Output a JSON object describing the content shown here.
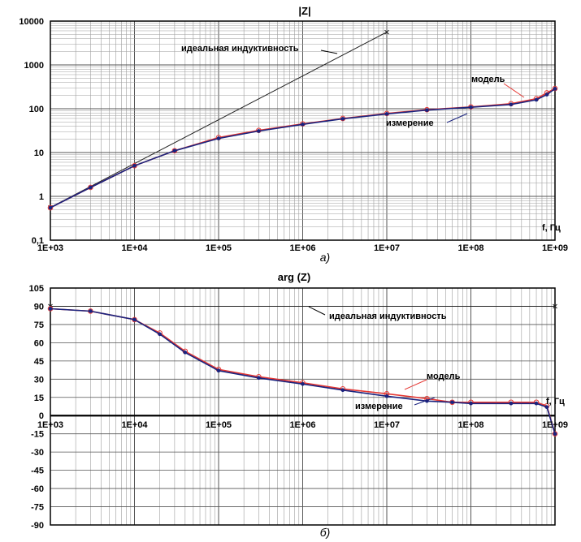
{
  "colors": {
    "measurement": "#1a237e",
    "model": "#e53935",
    "ideal": "#222222",
    "grid": "#9e9e9e"
  },
  "chart_data": [
    {
      "type": "line",
      "title": "|Z|",
      "xlabel": "f, Гц",
      "caption": "а)",
      "x_scale": "log",
      "y_scale": "log",
      "xlim": [
        1000,
        1000000000
      ],
      "ylim": [
        0.1,
        10000
      ],
      "grid": true,
      "x_ticks": [
        {
          "v": 1000,
          "label": "1E+03"
        },
        {
          "v": 10000,
          "label": "1E+04"
        },
        {
          "v": 100000,
          "label": "1E+05"
        },
        {
          "v": 1000000,
          "label": "1E+06"
        },
        {
          "v": 10000000,
          "label": "1E+07"
        },
        {
          "v": 100000000,
          "label": "1E+08"
        },
        {
          "v": 1000000000,
          "label": "1E+09"
        }
      ],
      "y_ticks": [
        {
          "v": 0.1,
          "label": "0,1"
        },
        {
          "v": 1,
          "label": "1"
        },
        {
          "v": 10,
          "label": "10"
        },
        {
          "v": 100,
          "label": "100"
        },
        {
          "v": 1000,
          "label": "1000"
        },
        {
          "v": 10000,
          "label": "10000"
        }
      ],
      "series": [
        {
          "key": "ideal",
          "color": "#222222",
          "label": "идеальная индуктивность",
          "points": [
            [
              1000,
              0.56
            ],
            [
              10000000,
              5600
            ]
          ]
        },
        {
          "key": "model",
          "color": "#e53935",
          "label": "модель",
          "points": [
            [
              1000,
              0.55
            ],
            [
              3000,
              1.6
            ],
            [
              10000,
              5
            ],
            [
              30000,
              11
            ],
            [
              100000,
              22
            ],
            [
              300000,
              32
            ],
            [
              1000000,
              45
            ],
            [
              3000000,
              60
            ],
            [
              10000000,
              78
            ],
            [
              30000000,
              95
            ],
            [
              100000000,
              110
            ],
            [
              300000000,
              130
            ],
            [
              600000000,
              170
            ],
            [
              800000000,
              230
            ],
            [
              1000000000,
              290
            ]
          ]
        },
        {
          "key": "measurement",
          "color": "#1a237e",
          "label": "измерение",
          "points": [
            [
              1000,
              0.55
            ],
            [
              3000,
              1.6
            ],
            [
              10000,
              5
            ],
            [
              30000,
              11
            ],
            [
              100000,
              21
            ],
            [
              300000,
              31
            ],
            [
              1000000,
              44
            ],
            [
              3000000,
              59
            ],
            [
              10000000,
              76
            ],
            [
              30000000,
              93
            ],
            [
              100000000,
              108
            ],
            [
              300000000,
              125
            ],
            [
              600000000,
              160
            ],
            [
              800000000,
              210
            ],
            [
              1000000000,
              285
            ]
          ]
        }
      ]
    },
    {
      "type": "line",
      "title": "arg (Z)",
      "xlabel": "f, Гц",
      "caption": "б)",
      "x_scale": "log",
      "y_scale": "linear",
      "xlim": [
        1000,
        1000000000
      ],
      "ylim": [
        -90,
        105
      ],
      "grid": true,
      "x_ticks": [
        {
          "v": 1000,
          "label": "1E+03"
        },
        {
          "v": 10000,
          "label": "1E+04"
        },
        {
          "v": 100000,
          "label": "1E+05"
        },
        {
          "v": 1000000,
          "label": "1E+06"
        },
        {
          "v": 10000000,
          "label": "1E+07"
        },
        {
          "v": 100000000,
          "label": "1E+08"
        },
        {
          "v": 1000000000,
          "label": "1E+09"
        }
      ],
      "y_ticks": [
        {
          "v": 105,
          "label": "105"
        },
        {
          "v": 90,
          "label": "90"
        },
        {
          "v": 75,
          "label": "75"
        },
        {
          "v": 60,
          "label": "60"
        },
        {
          "v": 45,
          "label": "45"
        },
        {
          "v": 30,
          "label": "30"
        },
        {
          "v": 15,
          "label": "15"
        },
        {
          "v": 0,
          "label": "0"
        },
        {
          "v": -15,
          "label": "-15"
        },
        {
          "v": -30,
          "label": "-30"
        },
        {
          "v": -45,
          "label": "-45"
        },
        {
          "v": -60,
          "label": "-60"
        },
        {
          "v": -75,
          "label": "-75"
        },
        {
          "v": -90,
          "label": "-90"
        }
      ],
      "series": [
        {
          "key": "ideal",
          "color": "#222222",
          "label": "идеальная индуктивность",
          "points": [
            [
              1000,
              90
            ],
            [
              1000000000,
              90
            ]
          ]
        },
        {
          "key": "model",
          "color": "#e53935",
          "label": "модель",
          "points": [
            [
              1000,
              88
            ],
            [
              3000,
              86
            ],
            [
              10000,
              79
            ],
            [
              20000,
              68
            ],
            [
              40000,
              53
            ],
            [
              100000,
              38
            ],
            [
              300000,
              32
            ],
            [
              1000000,
              27
            ],
            [
              3000000,
              22
            ],
            [
              10000000,
              18
            ],
            [
              30000000,
              14
            ],
            [
              60000000,
              11
            ],
            [
              100000000,
              11
            ],
            [
              300000000,
              11
            ],
            [
              600000000,
              11
            ],
            [
              800000000,
              8
            ],
            [
              1000000000,
              -15
            ]
          ]
        },
        {
          "key": "measurement",
          "color": "#1a237e",
          "label": "измерение",
          "points": [
            [
              1000,
              88
            ],
            [
              3000,
              86
            ],
            [
              10000,
              79
            ],
            [
              20000,
              67
            ],
            [
              40000,
              52
            ],
            [
              100000,
              37
            ],
            [
              300000,
              31
            ],
            [
              1000000,
              26
            ],
            [
              3000000,
              21
            ],
            [
              10000000,
              16
            ],
            [
              30000000,
              12
            ],
            [
              60000000,
              11
            ],
            [
              100000000,
              10
            ],
            [
              300000000,
              10
            ],
            [
              600000000,
              10
            ],
            [
              800000000,
              7
            ],
            [
              1000000000,
              -15
            ]
          ]
        }
      ]
    }
  ]
}
